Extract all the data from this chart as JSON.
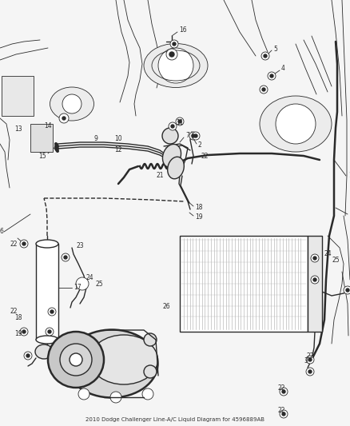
{
  "title": "2010 Dodge Challenger Line-A/C Liquid Diagram for 4596889AB",
  "bg_color": "#f5f5f5",
  "line_color": "#2a2a2a",
  "label_color": "#1a1a1a",
  "fig_width": 4.38,
  "fig_height": 5.33,
  "dpi": 100,
  "lw_main": 1.0,
  "lw_thick": 1.8,
  "lw_thin": 0.6,
  "fs_label": 5.5
}
